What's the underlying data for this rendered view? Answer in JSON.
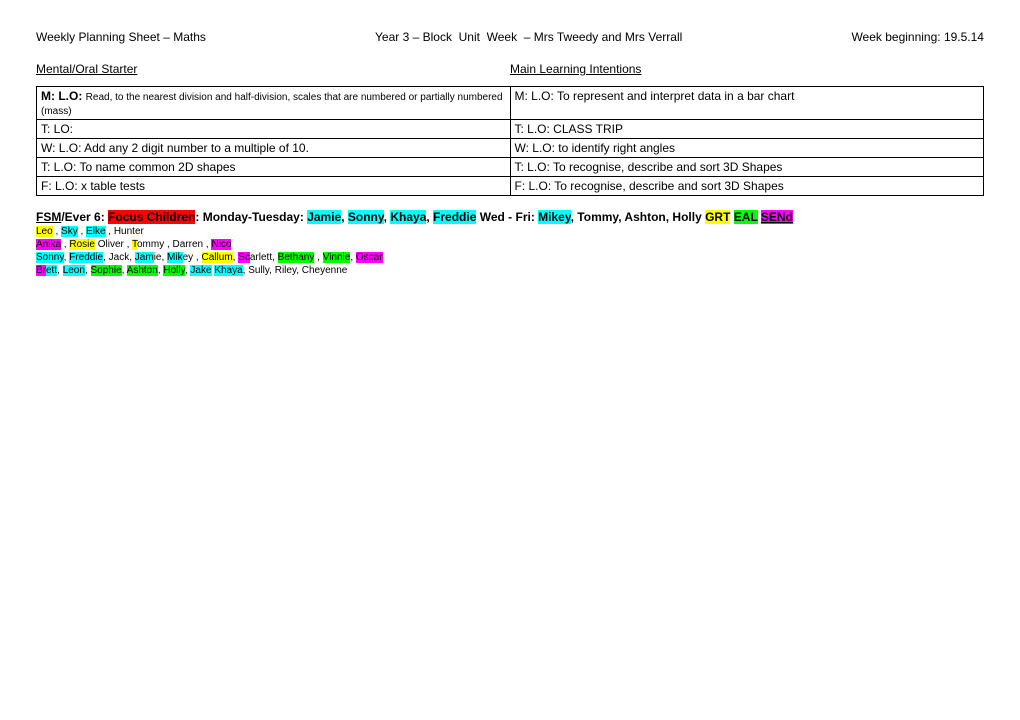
{
  "colors": {
    "hl_red": "#ff0000",
    "hl_cyan": "#00ffff",
    "hl_yellow": "#ffff00",
    "hl_green": "#00ff00",
    "hl_magenta": "#ff00ff"
  },
  "header": {
    "title": "Weekly Planning Sheet – Maths",
    "center": "Year 3 – Block  Unit  Week  – Mrs Tweedy and Mrs Verrall",
    "right": "Week beginning: 19.5.14"
  },
  "subhead": {
    "left": "Mental/Oral Starter",
    "right": "Main Learning Intentions"
  },
  "table": {
    "rows": [
      {
        "left_bold": "M: L.O:   ",
        "left_small": "Read, to the nearest division and half-division, scales that are numbered or partially numbered (mass)",
        "right": "M: L.O:  To represent and interpret data in a bar chart"
      },
      {
        "left": "T: LO:",
        "right": "T: L.O:     CLASS TRIP"
      },
      {
        "left": "W: L.O: Add any 2 digit number to a multiple of 10.",
        "right": "W: L.O: to identify right angles"
      },
      {
        "left": "T: L.O: To name common 2D shapes",
        "right": "T: L.O: To recognise, describe and sort 3D Shapes"
      },
      {
        "left": "F: L.O:  x table tests",
        "right": "F: L.O: To recognise, describe and sort 3D Shapes"
      }
    ]
  },
  "fsm": {
    "label_fsm": "FSM",
    "label_ever6": "/Ever 6:  ",
    "focus": "Focus Children",
    "colon_mon_tue": ":  Monday-Tuesday:   ",
    "jamie": "Jamie",
    "sonny": "Sonny",
    "khaya": "Khaya",
    "freddie": "Freddie",
    "wed_fri": "     Wed - Fri:   ",
    "mikey": "Mikey",
    "rest_names": ", Tommy, Ashton, Holly     ",
    "grt": "GRT",
    "eal": "EAL",
    "send": "SENd"
  },
  "line2": {
    "leo": "Leo",
    "sky": "Sky",
    "elke": "Elke",
    "hunter": " , Hunter"
  },
  "line3": {
    "anika": "Anika",
    "rosie": "Rosie",
    "oliver": "  Oliver , ",
    "tommy_t": "T",
    "tommy_rest": "ommy",
    "darren": " , Darren , ",
    "nico": "Nico"
  },
  "line4": {
    "sonny": "Sonny",
    "freddie": "Freddie",
    "jack": ", Jack, ",
    "jam": "Jam",
    "jamie_rest": "ie, ",
    "mik": "Mik",
    "mikey_rest": "ey ,  ",
    "callum": "Callum",
    "sc": "Sc",
    "scarlett_rest": "arlett, ",
    "bethany": "Bethany",
    "vinnie_pre": " , ",
    "vinnie": "Vinnie",
    "oscar_pre": ", ",
    "oscar": "Oscar"
  },
  "line5": {
    "brett_br": "Br",
    "brett_rest": "ett",
    "leon": "Leon",
    "sophie": "Sophie",
    "ashton": "Ashton",
    "holly": "Holly",
    "jake": "Jake",
    "khaya": "Khaya",
    "rest": ", Sully, Riley, Cheyenne"
  }
}
